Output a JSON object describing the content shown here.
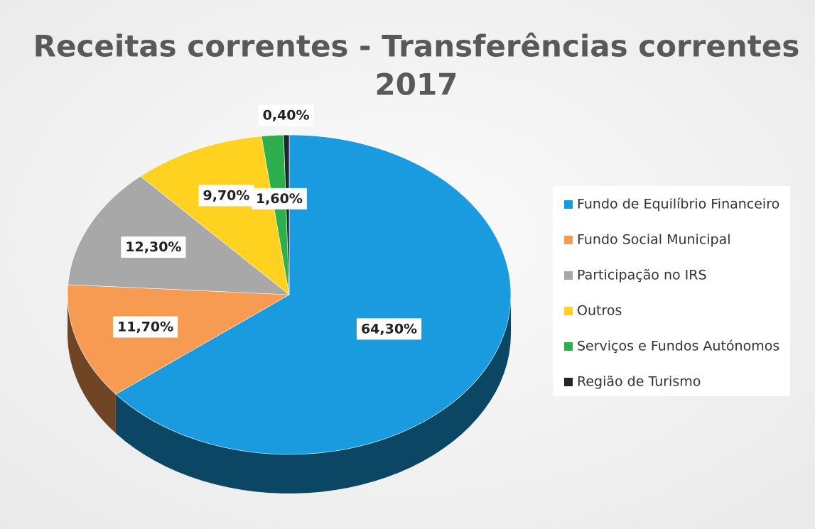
{
  "chart_data": {
    "type": "pie",
    "title": "Receitas correntes - Transferências correntes",
    "subtitle": "2017",
    "categories": [
      "Fundo de Equilíbrio Financeiro",
      "Fundo Social Municipal",
      "Participação no IRS",
      "Outros",
      "Serviços e Fundos Autónomos",
      "Região de Turismo"
    ],
    "values": [
      64.3,
      11.7,
      12.3,
      9.7,
      1.6,
      0.4
    ],
    "value_labels": [
      "64,30%",
      "11,70%",
      "12,30%",
      "9,70%",
      "1,60%",
      "0,40%"
    ],
    "colors": [
      "#1a9be0",
      "#f79a52",
      "#a8a8a8",
      "#ffd21f",
      "#2fae4e",
      "#1f262c"
    ],
    "legend": "right"
  }
}
